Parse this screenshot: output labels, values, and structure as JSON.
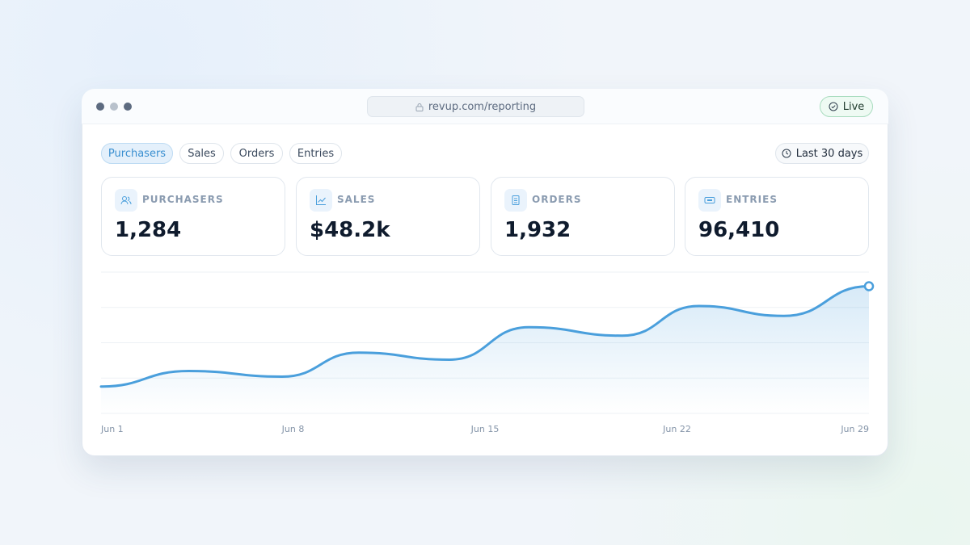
{
  "browser": {
    "url": "revup.com/reporting",
    "status": "Live"
  },
  "tabs": [
    "Purchasers",
    "Sales",
    "Orders",
    "Entries"
  ],
  "date_range": "Last 30 days",
  "stats": [
    {
      "label": "PURCHASERS",
      "value": "1,284"
    },
    {
      "label": "SALES",
      "value": "$48.2k"
    },
    {
      "label": "ORDERS",
      "value": "1,932"
    },
    {
      "label": "ENTRIES",
      "value": "96,410"
    }
  ],
  "chart_data": {
    "type": "line",
    "series": [
      {
        "color": "#4a9fdc",
        "x": [
          1,
          4.2,
          7.6,
          10.4,
          13.7,
          16.6,
          20,
          22.8,
          25.9,
          29
        ],
        "values": [
          19,
          30,
          26,
          43,
          38,
          61,
          55,
          76,
          69,
          90
        ]
      }
    ],
    "xlim": [
      1,
      29
    ],
    "xticks": [
      {
        "value": 1,
        "label": "Jun 1"
      },
      {
        "value": 8,
        "label": "Jun 8"
      },
      {
        "value": 15,
        "label": "Jun 15"
      },
      {
        "value": 22,
        "label": "Jun 22"
      },
      {
        "value": 29,
        "label": "Jun 29"
      }
    ],
    "ylim": [
      0,
      100
    ],
    "yticks": [
      0,
      25,
      50,
      75,
      100
    ],
    "grid": true
  }
}
